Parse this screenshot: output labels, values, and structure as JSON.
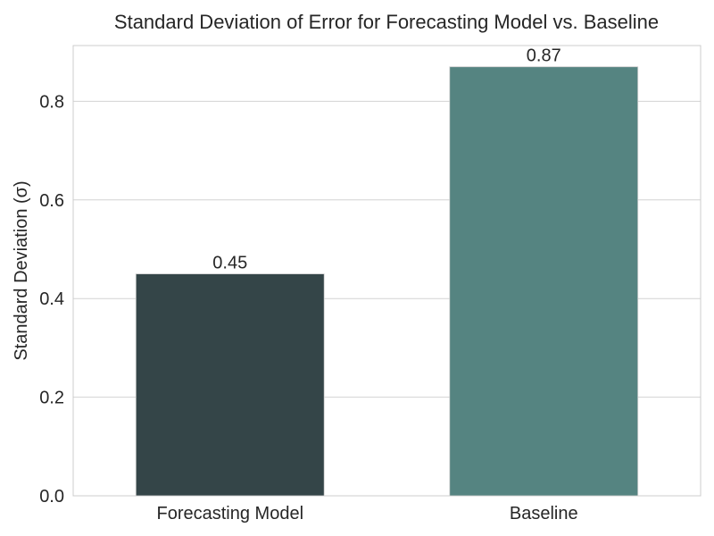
{
  "chart_data": {
    "type": "bar",
    "title": "Standard Deviation of Error for Forecasting Model vs. Baseline",
    "xlabel": "",
    "ylabel": "Standard Deviation (σ)",
    "categories": [
      "Forecasting Model",
      "Baseline"
    ],
    "values": [
      0.45,
      0.87
    ],
    "value_labels": [
      "0.45",
      "0.87"
    ],
    "colors": [
      "#344548",
      "#558481"
    ],
    "ylim": [
      0,
      0.913
    ],
    "yticks": [
      0.0,
      0.2,
      0.4,
      0.6,
      0.8
    ],
    "ytick_labels": [
      "0.0",
      "0.2",
      "0.4",
      "0.6",
      "0.8"
    ],
    "grid": true,
    "grid_axis": "y"
  }
}
